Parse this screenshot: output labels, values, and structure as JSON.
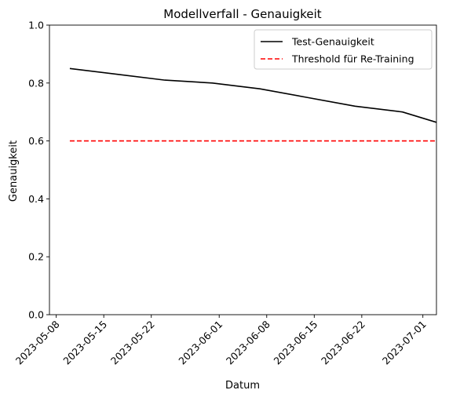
{
  "chart_data": {
    "type": "line",
    "title": "Modellverfall - Genauigkeit",
    "xlabel": "Datum",
    "ylabel": "Genauigkeit",
    "x_axis_type": "date",
    "xlim": [
      "2023-05-07",
      "2023-07-03"
    ],
    "ylim": [
      0.0,
      1.0
    ],
    "x_ticks": [
      "2023-05-08",
      "2023-05-15",
      "2023-05-22",
      "2023-06-01",
      "2023-06-08",
      "2023-06-15",
      "2023-06-22",
      "2023-07-01"
    ],
    "y_ticks": [
      "0.0",
      "0.2",
      "0.4",
      "0.6",
      "0.8",
      "1.0"
    ],
    "grid": false,
    "legend_position": "top-right",
    "series": [
      {
        "name": "Test-Genauigkeit",
        "style": "solid",
        "color": "#000000",
        "x": [
          "2023-05-10",
          "2023-05-17",
          "2023-05-24",
          "2023-05-31",
          "2023-06-07",
          "2023-06-14",
          "2023-06-21",
          "2023-06-28",
          "2023-07-05"
        ],
        "y": [
          0.85,
          0.83,
          0.81,
          0.8,
          0.78,
          0.75,
          0.72,
          0.7,
          0.65
        ]
      },
      {
        "name": "Threshold für Re-Training",
        "style": "dashed",
        "color": "#ff0000",
        "x": [
          "2023-05-10",
          "2023-07-05"
        ],
        "y": [
          0.6,
          0.6
        ]
      }
    ]
  }
}
